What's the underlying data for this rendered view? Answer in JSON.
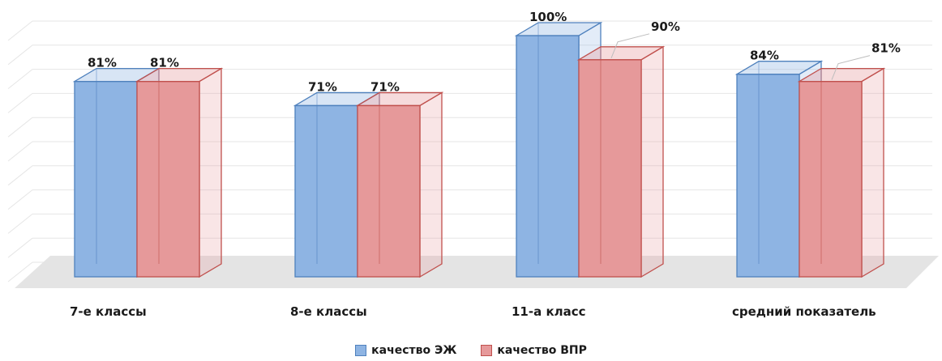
{
  "chart_data": {
    "type": "bar",
    "title": "",
    "xlabel": "",
    "ylabel": "",
    "ylim": [
      0,
      100
    ],
    "categories": [
      "7-е классы",
      "8-е классы",
      "11-а класс",
      "средний показатель"
    ],
    "series": [
      {
        "name": "качество ЭЖ",
        "values": [
          81,
          71,
          100,
          84
        ],
        "labels": [
          "81%",
          "71%",
          "100%",
          "84%"
        ],
        "color": "#8eb4e3",
        "edge": "#4f81bd"
      },
      {
        "name": "качество ВПР",
        "values": [
          81,
          71,
          90,
          81
        ],
        "labels": [
          "81%",
          "71%",
          "90%",
          "81%"
        ],
        "color": "#e6999a",
        "edge": "#c0504d"
      }
    ],
    "legend_position": "bottom",
    "grid": true
  }
}
